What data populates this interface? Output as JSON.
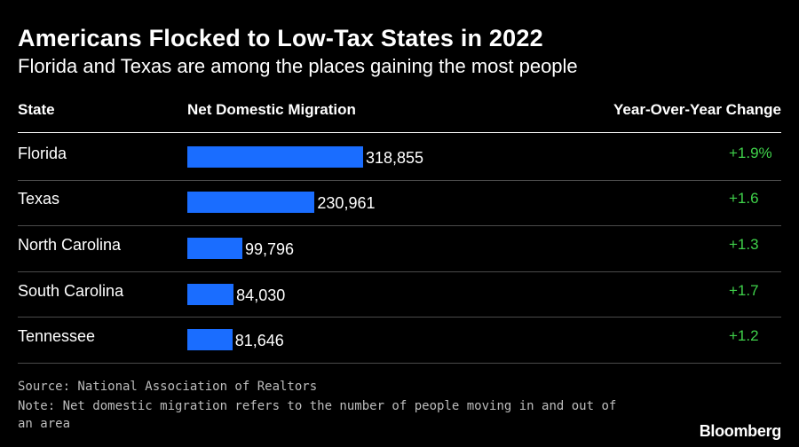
{
  "title": "Americans Flocked to Low-Tax States in 2022",
  "subtitle": "Florida and Texas are among the places gaining the most people",
  "columns": {
    "state": "State",
    "net": "Net Domestic Migration",
    "yoy": "Year-Over-Year Change"
  },
  "chart_data": {
    "type": "bar",
    "orientation": "horizontal",
    "title": "Americans Flocked to Low-Tax States in 2022",
    "subtitle": "Florida and Texas are among the places gaining the most people",
    "categories": [
      "Florida",
      "Texas",
      "North Carolina",
      "South Carolina",
      "Tennessee"
    ],
    "values": [
      318855,
      230961,
      99796,
      84030,
      81646
    ],
    "value_labels": [
      "318,855",
      "230,961",
      "99,796",
      "84,030",
      "81,646"
    ],
    "yoy_change": [
      "+1.9%",
      "+1.6",
      "+1.3",
      "+1.7",
      "+1.2"
    ],
    "bar_color": "#1a6dff",
    "positive_color": "#3fd14a",
    "grid": false
  },
  "footer": {
    "source": "Source: National Association of Realtors",
    "note_line1": "Note: Net domestic migration refers to the number of people moving in and out of",
    "note_line2": "an area"
  },
  "brand": "Bloomberg"
}
